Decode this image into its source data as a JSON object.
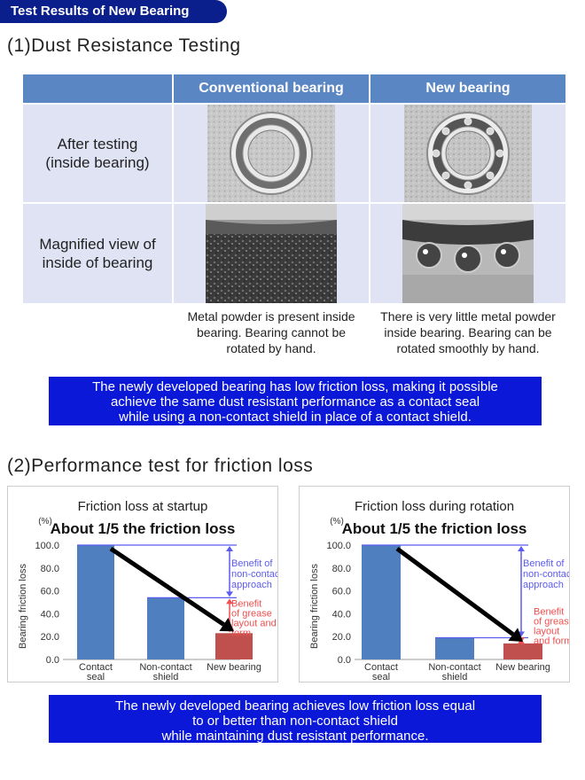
{
  "badge": "Test Results of New Bearing",
  "section1": {
    "title": "(1)Dust Resistance Testing",
    "col_headers": [
      "Conventional bearing",
      "New bearing"
    ],
    "row_labels": [
      "After testing\n(inside bearing)",
      "Magnified view of\ninside of bearing"
    ],
    "captions": [
      "Metal powder is present inside\nbearing. Bearing cannot be\nrotated by hand.",
      "There is very little metal powder\ninside bearing. Bearing can be\nrotated smoothly by hand."
    ],
    "note": "The newly developed bearing has low friction loss, making it  possible\nachieve the same dust resistant performance as a contact seal\nwhile using a non-contact shield in place of a contact shield."
  },
  "section2": {
    "title": "(2)Performance test for friction loss",
    "note": "The newly developed bearing achieves low friction loss equal\nto or better than non-contact shield\nwhile maintaining dust resistant performance."
  },
  "colors": {
    "bar_blue": "#4f7fbf",
    "bar_red": "#c0504d",
    "benefit_blue": "#5b5bf0",
    "benefit_red": "#f05050"
  },
  "chart_data": [
    {
      "type": "bar",
      "title": "Friction loss at startup",
      "subtitle": "About 1/5 the friction loss",
      "ylabel": "Bearing friction loss",
      "yunit": "(%)",
      "ylim": [
        0,
        100
      ],
      "yticks": [
        "0.0",
        "20.0",
        "40.0",
        "60.0",
        "80.0",
        "100.0"
      ],
      "categories": [
        "Contact\nseal",
        "Non-contact\nshield",
        "New bearing"
      ],
      "values": [
        100,
        54,
        23
      ],
      "annotations": [
        "Benefit of\nnon-contact\napproach",
        "Benefit\nof grease\nlayout and\nform"
      ]
    },
    {
      "type": "bar",
      "title": "Friction loss during rotation",
      "subtitle": "About 1/5 the friction loss",
      "ylabel": "Bearing friction loss",
      "yunit": "(%)",
      "ylim": [
        0,
        100
      ],
      "yticks": [
        "0.0",
        "20.0",
        "40.0",
        "60.0",
        "80.0",
        "100.0"
      ],
      "categories": [
        "Contact\nseal",
        "Non-contact\nshield",
        "New bearing"
      ],
      "values": [
        100,
        19,
        14
      ],
      "annotations": [
        "Benefit of\nnon-contact\napproach",
        "Benefit\nof grease\nlayout\nand form"
      ]
    }
  ]
}
